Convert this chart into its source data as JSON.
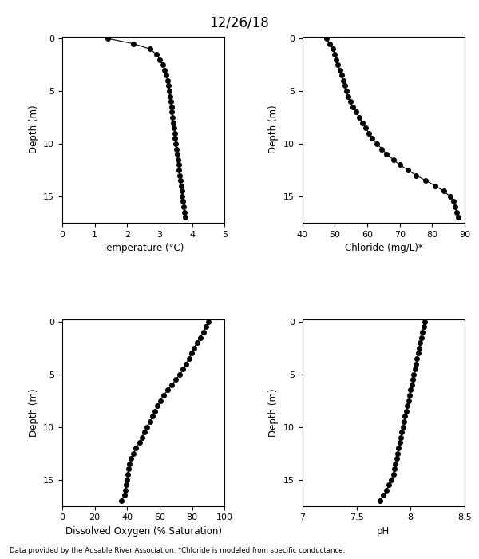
{
  "title": "12/26/18",
  "footer": "Data provided by the Ausable River Association. *Chloride is modeled from specific conductance.",
  "depth": [
    0,
    0.5,
    1,
    1.5,
    2,
    2.5,
    3,
    3.5,
    4,
    4.5,
    5,
    5.5,
    6,
    6.5,
    7,
    7.5,
    8,
    8.5,
    9,
    9.5,
    10,
    10.5,
    11,
    11.5,
    12,
    12.5,
    13,
    13.5,
    14,
    14.5,
    15,
    15.5,
    16,
    16.5,
    17
  ],
  "temp": [
    1.4,
    2.2,
    2.7,
    2.9,
    3.0,
    3.1,
    3.15,
    3.2,
    3.25,
    3.28,
    3.3,
    3.32,
    3.34,
    3.36,
    3.38,
    3.4,
    3.42,
    3.44,
    3.46,
    3.48,
    3.5,
    3.52,
    3.54,
    3.56,
    3.58,
    3.6,
    3.62,
    3.64,
    3.66,
    3.68,
    3.7,
    3.72,
    3.74,
    3.76,
    3.8
  ],
  "temp_xlim": [
    0,
    5
  ],
  "temp_xticks": [
    0,
    1,
    2,
    3,
    4,
    5
  ],
  "temp_xlabel": "Temperature (°C)",
  "chloride": [
    47.5,
    48.5,
    49.5,
    50.0,
    50.5,
    51.0,
    51.5,
    52.0,
    52.5,
    53.0,
    53.5,
    54.0,
    54.8,
    55.5,
    56.5,
    57.5,
    58.5,
    59.5,
    60.5,
    61.5,
    63.0,
    64.5,
    66.0,
    68.0,
    70.0,
    72.5,
    75.0,
    78.0,
    81.0,
    83.5,
    85.5,
    86.5,
    87.0,
    87.5,
    88.0
  ],
  "chloride_xlim": [
    40,
    90
  ],
  "chloride_xticks": [
    40,
    50,
    60,
    70,
    80,
    90
  ],
  "chloride_xlabel": "Chloride (mg/L)*",
  "do": [
    90.0,
    88.5,
    87.0,
    85.0,
    83.0,
    81.0,
    79.5,
    78.0,
    76.5,
    74.5,
    72.5,
    70.0,
    67.5,
    65.0,
    62.5,
    60.5,
    58.5,
    57.0,
    55.5,
    54.0,
    52.0,
    50.5,
    49.0,
    47.5,
    45.5,
    44.0,
    42.5,
    41.5,
    41.0,
    40.5,
    40.0,
    39.5,
    39.0,
    38.5,
    36.5
  ],
  "do_xlim": [
    0,
    100
  ],
  "do_xticks": [
    0,
    20,
    40,
    60,
    80,
    100
  ],
  "do_xlabel": "Dissolved Oxygen (% Saturation)",
  "ph": [
    8.13,
    8.12,
    8.11,
    8.1,
    8.09,
    8.08,
    8.07,
    8.06,
    8.05,
    8.04,
    8.03,
    8.02,
    8.01,
    8.0,
    7.99,
    7.98,
    7.97,
    7.96,
    7.95,
    7.94,
    7.93,
    7.92,
    7.91,
    7.9,
    7.89,
    7.88,
    7.87,
    7.86,
    7.85,
    7.84,
    7.82,
    7.8,
    7.78,
    7.75,
    7.72
  ],
  "ph_xlim": [
    7.0,
    8.5
  ],
  "ph_xticks": [
    7.0,
    7.5,
    8.0,
    8.5
  ],
  "ph_xlabel": "pH",
  "depth_ylim": [
    17.5,
    -0.2
  ],
  "depth_yticks": [
    0,
    5,
    10,
    15
  ],
  "ylabel": "Depth (m)",
  "line_color": "black",
  "marker": "o",
  "markersize": 4,
  "linewidth": 0.8,
  "markerfacecolor": "black"
}
